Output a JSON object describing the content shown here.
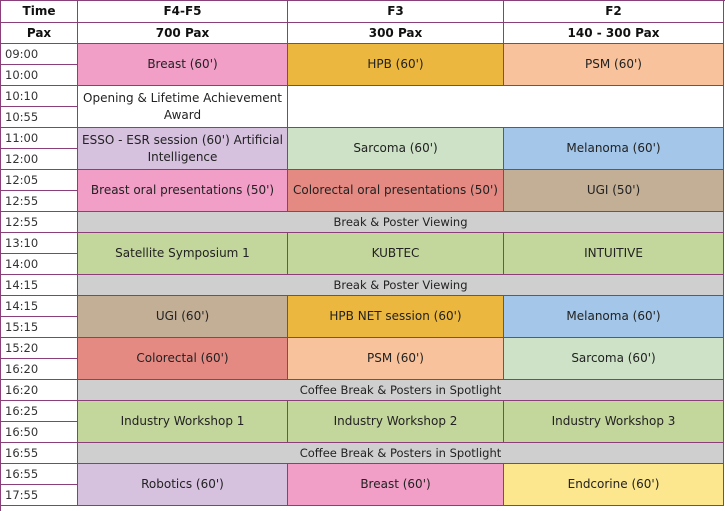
{
  "header": {
    "time_label": "Time",
    "pax_label": "Pax",
    "rooms": [
      "F4-F5",
      "F3",
      "F2"
    ],
    "capacities": [
      "700 Pax",
      "300 Pax",
      "140 - 300 Pax"
    ]
  },
  "times": [
    "09:00",
    "10:00",
    "10:10",
    "10:55",
    "11:00",
    "12:00",
    "12:05",
    "12:55",
    "12:55",
    "13:10",
    "14:00",
    "14:15",
    "14:15",
    "15:15",
    "15:20",
    "16:20",
    "16:20",
    "16:25",
    "16:50",
    "16:55",
    "16:55",
    "17:55"
  ],
  "sessions": {
    "s1": [
      "Breast (60')",
      "HPB (60')",
      "PSM (60')"
    ],
    "s2": [
      "Opening & Lifetime Achievement Award"
    ],
    "s3": [
      "ESSO - ESR session (60') Artificial Intelligence",
      "Sarcoma (60')",
      "Melanoma (60')"
    ],
    "s4": [
      "Breast oral presentations (50')",
      "Colorectal oral presentations (50')",
      "UGI (50')"
    ],
    "break1": "Break & Poster Viewing",
    "s5": [
      "Satellite Symposium 1",
      "KUBTEC",
      "INTUITIVE"
    ],
    "break2": "Break & Poster Viewing",
    "s6": [
      "UGI (60')",
      "HPB NET session (60')",
      "Melanoma (60')"
    ],
    "s7": [
      "Colorectal (60')",
      "PSM (60')",
      "Sarcoma (60')"
    ],
    "break3": "Coffee Break & Posters in Spotlight",
    "s8": [
      "Industry Workshop 1",
      "Industry Workshop 2",
      "Industry Workshop 3"
    ],
    "break4": "Coffee Break & Posters in Spotlight",
    "s9": [
      "Robotics (60')",
      "Breast (60')",
      "Endcorine (60')"
    ]
  }
}
